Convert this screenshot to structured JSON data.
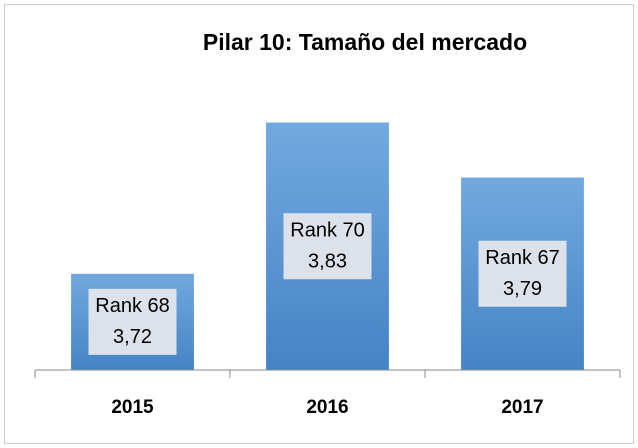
{
  "chart_data": {
    "type": "bar",
    "title": "Pilar 10: Tamaño del mercado",
    "categories": [
      "2015",
      "2016",
      "2017"
    ],
    "values": [
      3.72,
      3.83,
      3.79
    ],
    "value_labels": [
      "3,72",
      "3,83",
      "3,79"
    ],
    "rank_labels": [
      "Rank 68",
      "Rank 70",
      "Rank 67"
    ],
    "color": "#5b9bd5",
    "ylim": [
      3.65,
      3.85
    ]
  }
}
